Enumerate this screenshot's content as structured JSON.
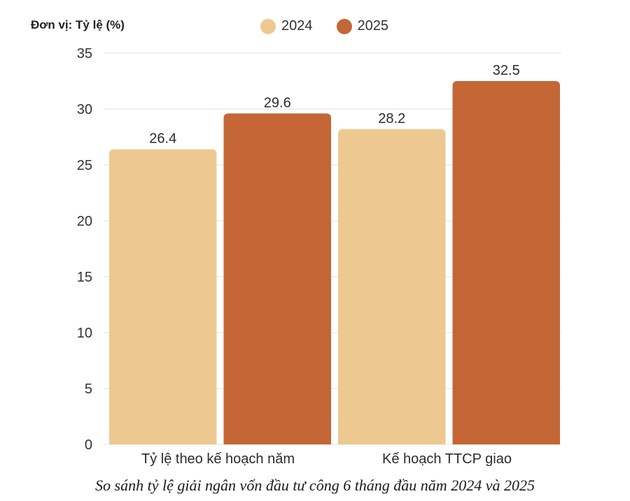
{
  "unit_label": "Đơn vị:  Tỷ lệ (%)",
  "caption": "So sánh tỷ lệ giải ngân vốn đầu tư công 6 tháng đầu năm 2024 và 2025",
  "chart_data": {
    "type": "bar",
    "title": "",
    "ylabel": "Tỷ lệ (%)",
    "categories": [
      "Tỷ lệ theo kế hoạch năm",
      "Kế hoạch TTCP giao"
    ],
    "series": [
      {
        "name": "2024",
        "values": [
          26.4,
          28.2
        ],
        "color": "#EDC991"
      },
      {
        "name": "2025",
        "values": [
          29.6,
          32.5
        ],
        "color": "#C46635"
      }
    ],
    "ylim": [
      0,
      35
    ],
    "yticks": [
      0,
      5,
      10,
      15,
      20,
      25,
      30,
      35
    ],
    "grid": true,
    "legend": "top-center"
  },
  "colors": {
    "gridline": "#E6E6E6",
    "axis_text": "#333333"
  }
}
